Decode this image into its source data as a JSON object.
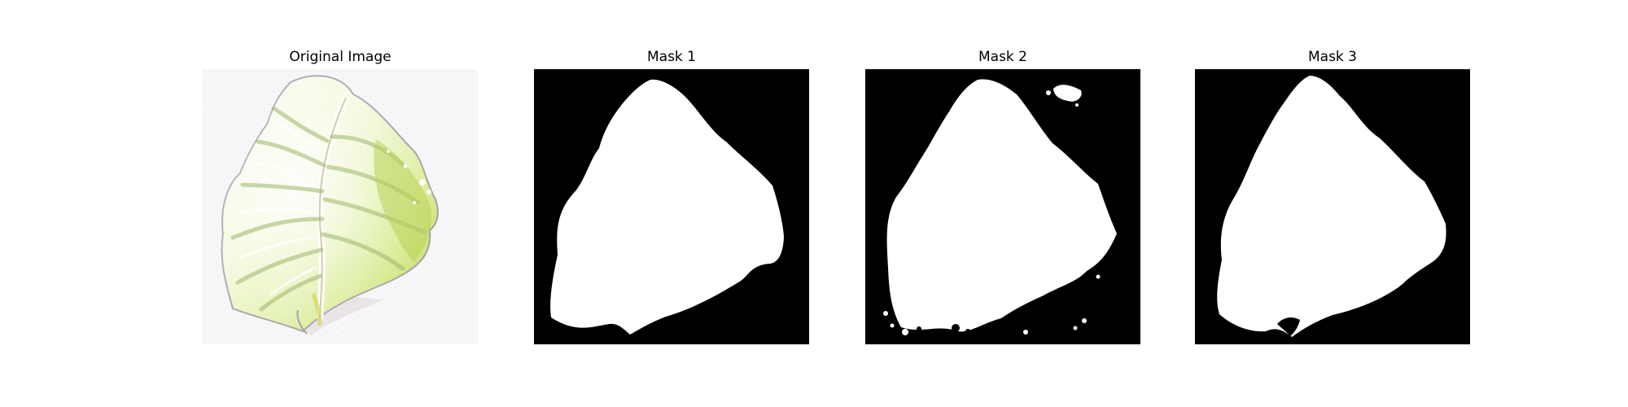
{
  "figure": {
    "panels": [
      {
        "title": "Original Image",
        "content": "leaf photo"
      },
      {
        "title": "Mask 1",
        "content": "binary mask"
      },
      {
        "title": "Mask 2",
        "content": "binary mask"
      },
      {
        "title": "Mask 3",
        "content": "binary mask"
      }
    ]
  },
  "colors": {
    "mask_background": "#000000",
    "mask_foreground": "#ffffff",
    "leaf_light": "#f2f8dc",
    "leaf_green": "#c9e26d",
    "leaf_shadow": "#d8d0d5",
    "background_gray": "#f5f4f6"
  }
}
